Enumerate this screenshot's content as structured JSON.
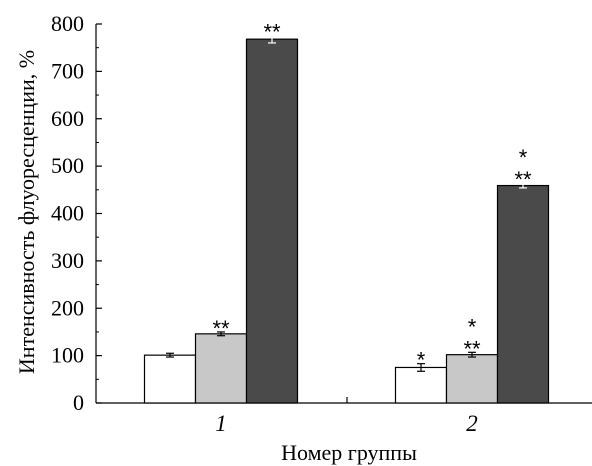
{
  "chart_data": {
    "type": "bar",
    "title": "",
    "xlabel": "Номер группы",
    "ylabel": "Интенсивность флуоресценции, %",
    "ylim": [
      0,
      800
    ],
    "yticks": [
      "0",
      "100",
      "200",
      "300",
      "400",
      "500",
      "600",
      "700",
      "800"
    ],
    "categories": [
      "1",
      "2"
    ],
    "series": [
      {
        "values": [
          101,
          75
        ],
        "errors": [
          4,
          8
        ],
        "color": "#ffffff",
        "significance": [
          "",
          "*"
        ]
      },
      {
        "values": [
          146,
          102
        ],
        "errors": [
          4,
          5
        ],
        "color": "#c8c8c8",
        "significance": [
          "**",
          "*\n**"
        ]
      },
      {
        "values": [
          768,
          459
        ],
        "errors": [
          8,
          5
        ],
        "color": "#4a4a4a",
        "significance": [
          "**",
          "*\n**"
        ]
      }
    ],
    "grid": false,
    "legend": "none"
  }
}
